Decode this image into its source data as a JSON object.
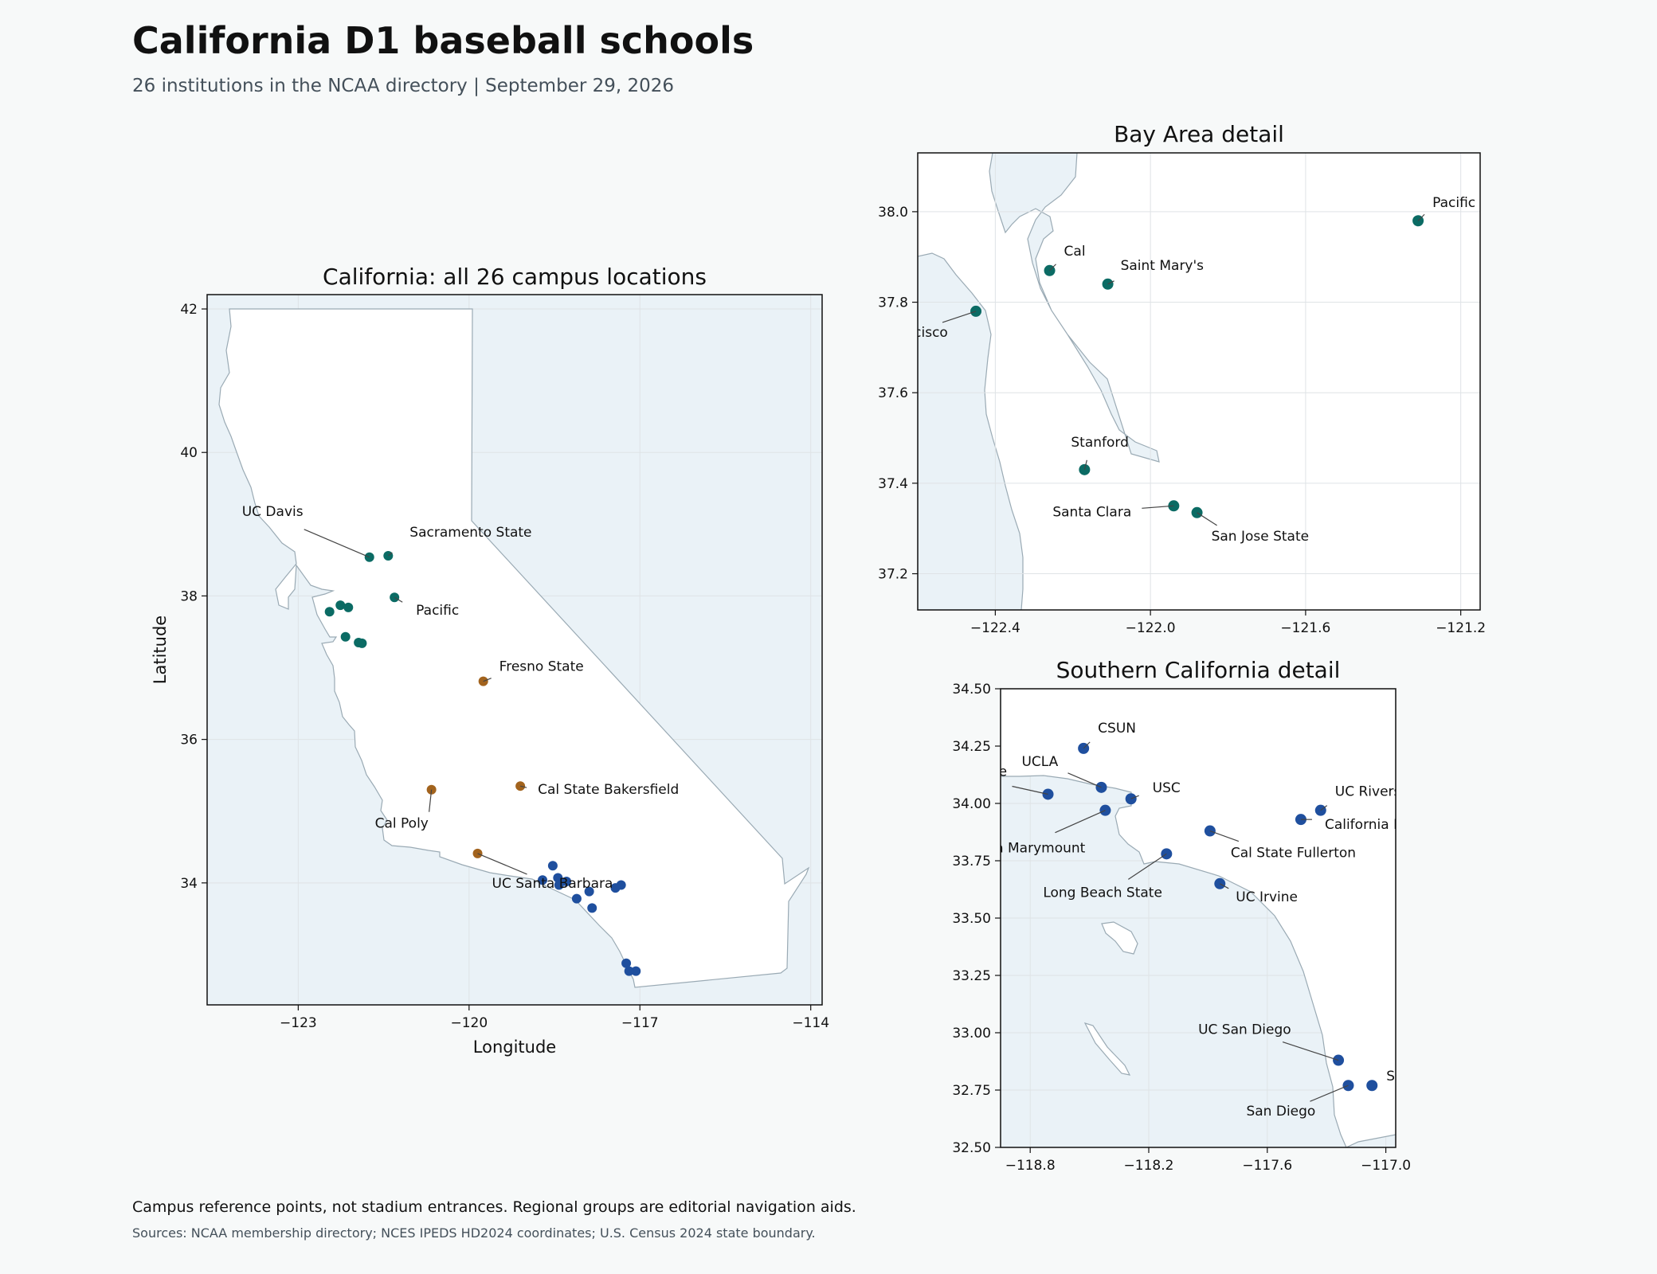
{
  "title": "California D1 baseball schools",
  "subtitle": "26 institutions in the NCAA directory | September 29, 2026",
  "footnote": "Campus reference points, not stadium entrances. Regional groups are editorial navigation aids.",
  "sources": "Sources: NCAA membership directory; NCES IPEDS HD2024 coordinates; U.S. Census 2024 state boundary.",
  "colors": {
    "north": "#0b6b64",
    "central": "#a2631d",
    "south": "#1f4f9e",
    "sea": "#eaf2f7",
    "land": "#ffffff"
  },
  "chart_data": [
    {
      "type": "scatter",
      "id": "california",
      "title": "California: all 26 campus locations",
      "xlabel": "Longitude",
      "ylabel": "Latitude",
      "xlim": [
        -124.6,
        -113.8
      ],
      "ylim": [
        32.3,
        42.2
      ],
      "xticks": [
        -123,
        -120,
        -117,
        -114
      ],
      "yticks": [
        34,
        36,
        38,
        40,
        42
      ],
      "xticklabels": [
        "−123",
        "−120",
        "−117",
        "−114"
      ],
      "yticklabels": [
        "34",
        "36",
        "38",
        "40",
        "42"
      ],
      "grid": true,
      "labeled": [
        {
          "name": "UC Davis",
          "lon": -121.75,
          "lat": 38.54,
          "region": "north"
        },
        {
          "name": "Sacramento State",
          "lon": -121.42,
          "lat": 38.56,
          "region": "north"
        },
        {
          "name": "Pacific",
          "lon": -121.31,
          "lat": 37.98,
          "region": "north"
        },
        {
          "name": "Fresno State",
          "lon": -119.75,
          "lat": 36.81,
          "region": "central"
        },
        {
          "name": "Cal State Bakersfield",
          "lon": -119.1,
          "lat": 35.35,
          "region": "central"
        },
        {
          "name": "Cal Poly",
          "lon": -120.66,
          "lat": 35.3,
          "region": "central"
        },
        {
          "name": "UC Santa Barbara",
          "lon": -119.85,
          "lat": 34.41,
          "region": "central"
        }
      ],
      "unlabeled": [
        {
          "lon": -122.26,
          "lat": 37.87,
          "region": "north"
        },
        {
          "lon": -122.12,
          "lat": 37.84,
          "region": "north"
        },
        {
          "lon": -122.45,
          "lat": 37.78,
          "region": "north"
        },
        {
          "lon": -122.17,
          "lat": 37.43,
          "region": "north"
        },
        {
          "lon": -121.94,
          "lat": 37.35,
          "region": "north"
        },
        {
          "lon": -121.88,
          "lat": 37.34,
          "region": "north"
        },
        {
          "lon": -118.53,
          "lat": 34.24,
          "region": "south"
        },
        {
          "lon": -118.44,
          "lat": 34.07,
          "region": "south"
        },
        {
          "lon": -118.29,
          "lat": 34.02,
          "region": "south"
        },
        {
          "lon": -118.71,
          "lat": 34.04,
          "region": "south"
        },
        {
          "lon": -118.42,
          "lat": 33.97,
          "region": "south"
        },
        {
          "lon": -118.11,
          "lat": 33.78,
          "region": "south"
        },
        {
          "lon": -117.89,
          "lat": 33.88,
          "region": "south"
        },
        {
          "lon": -117.84,
          "lat": 33.65,
          "region": "south"
        },
        {
          "lon": -117.33,
          "lat": 33.97,
          "region": "south"
        },
        {
          "lon": -117.43,
          "lat": 33.93,
          "region": "south"
        },
        {
          "lon": -117.24,
          "lat": 32.88,
          "region": "south"
        },
        {
          "lon": -117.07,
          "lat": 32.77,
          "region": "south"
        },
        {
          "lon": -117.19,
          "lat": 32.77,
          "region": "south"
        }
      ]
    },
    {
      "type": "scatter",
      "id": "bay",
      "title": "Bay Area detail",
      "xlim": [
        -122.6,
        -121.15
      ],
      "ylim": [
        37.12,
        38.13
      ],
      "xticks": [
        -122.4,
        -122.0,
        -121.6,
        -121.2
      ],
      "yticks": [
        37.2,
        37.4,
        37.6,
        37.8,
        38.0
      ],
      "xticklabels": [
        "−122.4",
        "−122.0",
        "−121.6",
        "−121.2"
      ],
      "yticklabels": [
        "37.2",
        "37.4",
        "37.6",
        "37.8",
        "38.0"
      ],
      "grid": true,
      "points": [
        {
          "name": "Pacific",
          "lon": -121.31,
          "lat": 37.98,
          "region": "north"
        },
        {
          "name": "Cal",
          "lon": -122.26,
          "lat": 37.87,
          "region": "north"
        },
        {
          "name": "Saint Mary's",
          "lon": -122.11,
          "lat": 37.84,
          "region": "north"
        },
        {
          "name": "San Francisco",
          "lon": -122.45,
          "lat": 37.78,
          "region": "north"
        },
        {
          "name": "Stanford",
          "lon": -122.17,
          "lat": 37.43,
          "region": "north"
        },
        {
          "name": "Santa Clara",
          "lon": -121.94,
          "lat": 37.35,
          "region": "north"
        },
        {
          "name": "San Jose State",
          "lon": -121.88,
          "lat": 37.335,
          "region": "north"
        }
      ]
    },
    {
      "type": "scatter",
      "id": "socal",
      "title": "Southern California detail",
      "xlim": [
        -118.95,
        -116.95
      ],
      "ylim": [
        32.5,
        34.5
      ],
      "xticks": [
        -118.8,
        -118.2,
        -117.6,
        -117.0
      ],
      "yticks": [
        32.5,
        32.75,
        33.0,
        33.25,
        33.5,
        33.75,
        34.0,
        34.25,
        34.5
      ],
      "xticklabels": [
        "−118.8",
        "−118.2",
        "−117.6",
        "−117.0"
      ],
      "yticklabels": [
        "32.50",
        "32.75",
        "33.00",
        "33.25",
        "33.50",
        "33.75",
        "34.00",
        "34.25",
        "34.50"
      ],
      "grid": true,
      "points": [
        {
          "name": "CSUN",
          "lon": -118.53,
          "lat": 34.24,
          "region": "south"
        },
        {
          "name": "UCLA",
          "lon": -118.44,
          "lat": 34.07,
          "region": "south"
        },
        {
          "name": "Pepperdine",
          "lon": -118.71,
          "lat": 34.04,
          "region": "south"
        },
        {
          "name": "USC",
          "lon": -118.29,
          "lat": 34.02,
          "region": "south"
        },
        {
          "name": "Loyola Marymount",
          "lon": -118.42,
          "lat": 33.97,
          "region": "south"
        },
        {
          "name": "UC Riverside",
          "lon": -117.33,
          "lat": 33.97,
          "region": "south"
        },
        {
          "name": "California Baptist",
          "lon": -117.43,
          "lat": 33.93,
          "region": "south"
        },
        {
          "name": "Cal State Fullerton",
          "lon": -117.89,
          "lat": 33.88,
          "region": "south"
        },
        {
          "name": "Long Beach State",
          "lon": -118.11,
          "lat": 33.78,
          "region": "south"
        },
        {
          "name": "UC Irvine",
          "lon": -117.84,
          "lat": 33.65,
          "region": "south"
        },
        {
          "name": "UC San Diego",
          "lon": -117.24,
          "lat": 32.88,
          "region": "south"
        },
        {
          "name": "San Diego State",
          "lon": -117.07,
          "lat": 32.77,
          "region": "south"
        },
        {
          "name": "San Diego",
          "lon": -117.19,
          "lat": 32.77,
          "region": "south"
        }
      ]
    }
  ]
}
